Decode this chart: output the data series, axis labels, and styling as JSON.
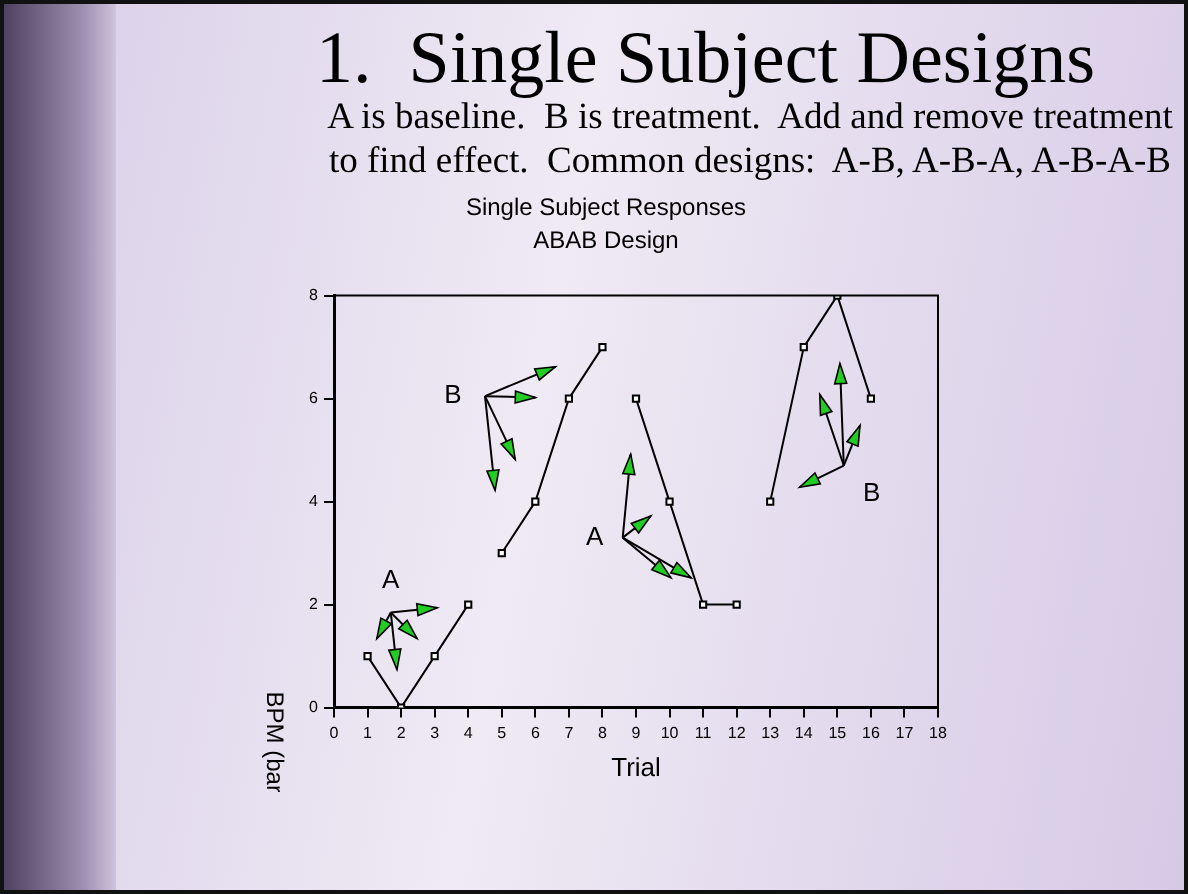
{
  "chart_data": {
    "type": "line",
    "title": "Single Subject Responses",
    "subtitle": "ABAB Design",
    "xlabel": "Trial",
    "ylabel": "BPM (bar",
    "annotations": [
      "1.  Single Subject Designs",
      "A is baseline.  B is treatment.  Add and remove treatment to find effect.  Common designs:  A-B, A-B-A, A-B-A-B",
      "A",
      "B",
      "A",
      "B"
    ],
    "series": [
      {
        "color": "#000000",
        "x": [
          1,
          2,
          3,
          4
        ],
        "values": [
          1,
          0,
          1,
          2
        ]
      },
      {
        "color": "#000000",
        "x": [
          5,
          6,
          7,
          8
        ],
        "values": [
          3,
          4,
          6,
          7
        ]
      },
      {
        "color": "#000000",
        "x": [
          9,
          10,
          11,
          12
        ],
        "values": [
          6,
          4,
          2,
          2
        ]
      },
      {
        "color": "#000000",
        "x": [
          13,
          14,
          15,
          16
        ],
        "values": [
          4,
          7,
          8,
          6
        ]
      }
    ],
    "xlim": [
      0,
      18
    ],
    "xticks": [
      0,
      1,
      2,
      3,
      4,
      5,
      6,
      7,
      8,
      9,
      10,
      11,
      12,
      13,
      14,
      15,
      16,
      17,
      18
    ],
    "ylim": [
      0,
      8
    ],
    "yticks": [
      0,
      2,
      4,
      6,
      8
    ],
    "grid": false,
    "legend": false,
    "marker": "square",
    "line_style": "solid"
  }
}
